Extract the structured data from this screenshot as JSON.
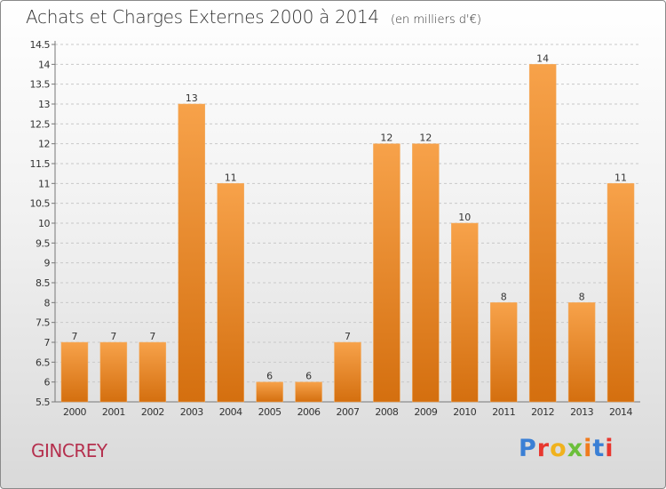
{
  "header": {
    "title": "Achats et Charges Externes 2000 à 2014",
    "unit": "(en milliers d'€)"
  },
  "footer": {
    "place": "GINCREY",
    "brand": "Proxiti",
    "brand_colors": [
      "#3a7fd5",
      "#e8372f",
      "#f0b21d",
      "#6bbf3a",
      "#f07b1d",
      "#3a7fd5",
      "#e8372f"
    ]
  },
  "chart_data": {
    "type": "bar",
    "title": "Achats et Charges Externes 2000 à 2014",
    "subtitle": "(en milliers d'€)",
    "categories": [
      "2000",
      "2001",
      "2002",
      "2003",
      "2004",
      "2005",
      "2006",
      "2007",
      "2008",
      "2009",
      "2010",
      "2011",
      "2012",
      "2013",
      "2014"
    ],
    "values": [
      7,
      7,
      7,
      13,
      11,
      6,
      6,
      7,
      12,
      12,
      10,
      8,
      14,
      8,
      11
    ],
    "value_labels": [
      "7",
      "7",
      "7",
      "13",
      "11",
      "6",
      "6",
      "7",
      "12",
      "12",
      "10",
      "8",
      "14",
      "8",
      "11"
    ],
    "ylim": [
      5.5,
      14.5
    ],
    "yticks": [
      5.5,
      6,
      6.5,
      7,
      7.5,
      8,
      8.5,
      9,
      9.5,
      10,
      10.5,
      11,
      11.5,
      12,
      12.5,
      13,
      13.5,
      14,
      14.5
    ],
    "ytick_labels": [
      "5.5",
      "6",
      "6.5",
      "7",
      "7.5",
      "8",
      "8.5",
      "9",
      "9.5",
      "10",
      "10.5",
      "11",
      "11.5",
      "12",
      "12.5",
      "13",
      "13.5",
      "14",
      "14.5"
    ],
    "grid": "horizontal dashed",
    "bar_color_top": "#f7a24a",
    "bar_color_bottom": "#d46f0f"
  }
}
